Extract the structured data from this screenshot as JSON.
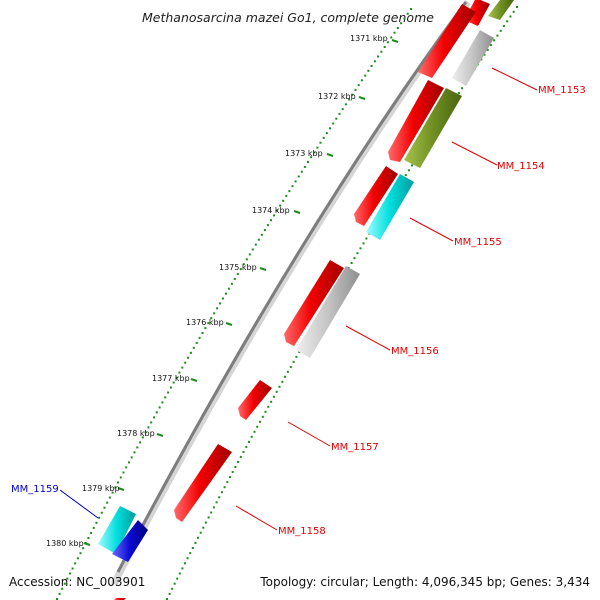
{
  "title": "Methanosarcina mazei Go1, complete genome",
  "footer": {
    "accession": "Accession: NC_003901",
    "summary": "Topology: circular; Length: 4,096,345 bp; Genes: 3,434"
  },
  "colors": {
    "backbone": "#8a8a8a",
    "tick": "#1c8c1c",
    "gene_red": "#f20000",
    "gene_grey": "#c4c4c4",
    "gene_olive": "#6f8f22",
    "gene_cyan": "#00dede",
    "gene_blue": "#0a0ad2",
    "label_red": "#e00000",
    "label_blue": "#0000cc"
  },
  "ticks": [
    "1371 kbp",
    "1372 kbp",
    "1373 kbp",
    "1374 kbp",
    "1375 kbp",
    "1376 kbp",
    "1377 kbp",
    "1378 kbp",
    "1379 kbp",
    "1380 kbp"
  ],
  "genes": [
    {
      "label": "MM_1153",
      "color": "red"
    },
    {
      "label": "MM_1154",
      "color": "red"
    },
    {
      "label": "MM_1155",
      "color": "red"
    },
    {
      "label": "MM_1156",
      "color": "red"
    },
    {
      "label": "MM_1157",
      "color": "red"
    },
    {
      "label": "MM_1158",
      "color": "red"
    },
    {
      "label": "MM_1159",
      "color": "blue"
    }
  ]
}
